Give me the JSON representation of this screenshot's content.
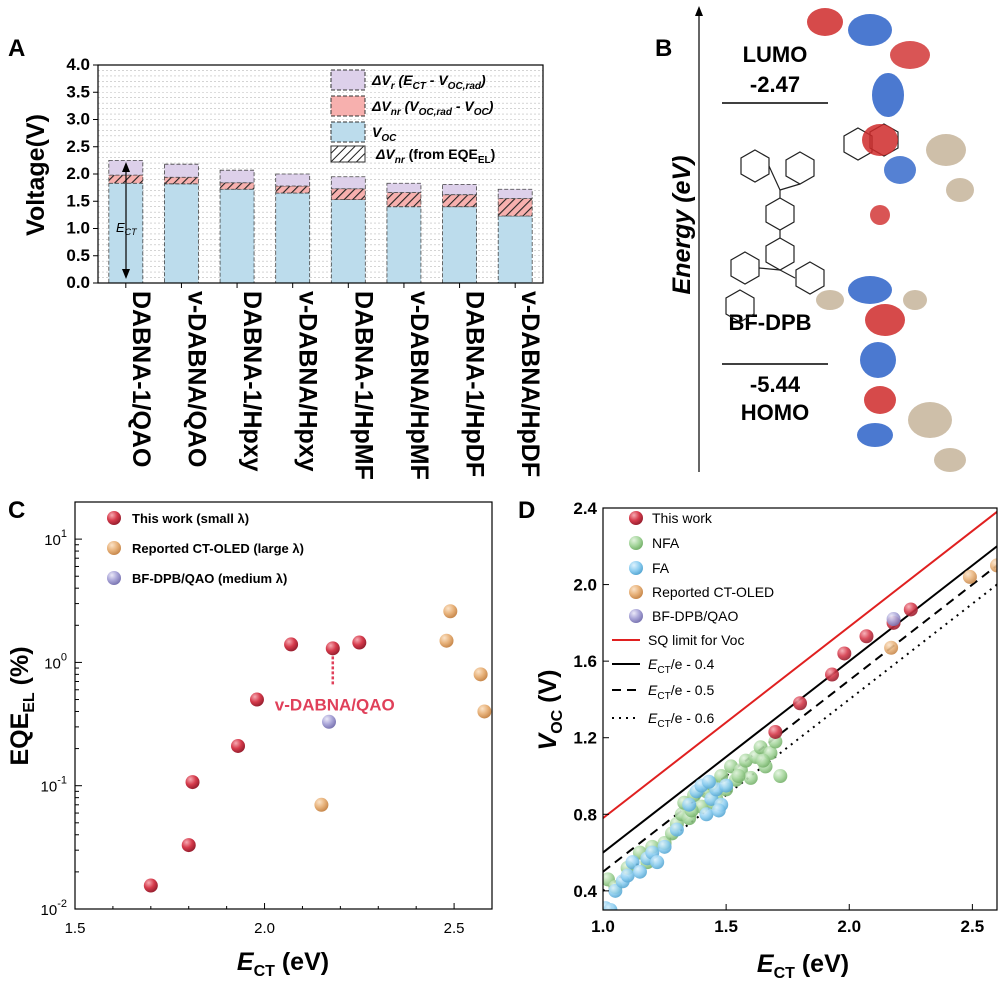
{
  "panel_labels": {
    "a": "A",
    "b": "B",
    "c": "C",
    "d": "D"
  },
  "colors": {
    "voc_fill": "#bcdcec",
    "nr_fill": "#f7b0ae",
    "r_fill": "#ddd0ea",
    "this_work": "#d63b4c",
    "reported": "#e8b37c",
    "bfdpb": "#aaa6d8",
    "nfa": "#a3d49a",
    "fa": "#8ccdf0",
    "sq": "#e02020",
    "annot": "#e0405a"
  },
  "chart_data": [
    {
      "id": "A",
      "type": "bar",
      "ylabel": "Voltage(V)",
      "ylim": [
        0,
        4.0
      ],
      "yticks": [
        "0.0",
        "0.5",
        "1.0",
        "1.5",
        "2.0",
        "2.5",
        "3.0",
        "3.5",
        "4.0"
      ],
      "grid": true,
      "categories": [
        "DABNA-1/QAO",
        "v-DABNA/QAO",
        "DABNA-1/Hpxy",
        "v-DABNA/Hpxy",
        "DABNA-1/HpMF",
        "v-DABNA/HpMF",
        "DABNA-1/HpDF",
        "v-DABNA/HpDF"
      ],
      "series": [
        {
          "name": "V_OC",
          "values": [
            1.83,
            1.82,
            1.72,
            1.65,
            1.53,
            1.4,
            1.4,
            1.23
          ]
        },
        {
          "name": "ΔV_nr (V_OC,rad - V_OC)",
          "values": [
            0.15,
            0.12,
            0.12,
            0.13,
            0.2,
            0.26,
            0.22,
            0.32
          ]
        },
        {
          "name": "ΔV_r (E_CT - V_OC,rad)",
          "values": [
            0.27,
            0.24,
            0.23,
            0.22,
            0.22,
            0.17,
            0.19,
            0.17
          ]
        }
      ],
      "hatch_values": [
        0.15,
        0.12,
        0.12,
        0.13,
        0.2,
        0.26,
        0.22,
        0.32
      ],
      "legend": {
        "r": {
          "main": "ΔV",
          "sub": "r",
          "rest1": " (E",
          "rest1sub": "CT",
          "rest2": " - V",
          "rest2sub": "OC,rad",
          "rest3": ")"
        },
        "nr": {
          "main": "ΔV",
          "sub": "nr",
          "rest1": " (V",
          "rest1sub": "OC,rad",
          "rest2": " - V",
          "rest2sub": "OC",
          "rest3": ")"
        },
        "voc": {
          "main": "V",
          "sub": "OC"
        },
        "hatch": {
          "main": "ΔV",
          "sub": "nr",
          "rest1": " (from EQE",
          "rest1sub": "EL",
          "rest2": ")"
        }
      },
      "ect_label": {
        "main": "E",
        "sub": "CT"
      }
    },
    {
      "id": "C",
      "type": "scatter",
      "ylabel": {
        "main": "EQE",
        "sub": "EL",
        "rest": " (%)"
      },
      "xlabel": {
        "main": "E",
        "sub": "CT",
        "rest": " (eV)"
      },
      "xlim": [
        1.5,
        2.6
      ],
      "xticks": [
        "1.5",
        "2.0",
        "2.5"
      ],
      "ylim_log": [
        0.01,
        20
      ],
      "yticks": [
        {
          "base": "10",
          "exp": "-2"
        },
        {
          "base": "10",
          "exp": "-1"
        },
        {
          "base": "10",
          "exp": "0"
        },
        {
          "base": "10",
          "exp": "1"
        }
      ],
      "series": [
        {
          "name": "This work (small λ)",
          "color_key": "this_work",
          "points": [
            [
              1.7,
              0.0155
            ],
            [
              1.8,
              0.033
            ],
            [
              1.81,
              0.107
            ],
            [
              1.93,
              0.21
            ],
            [
              1.98,
              0.5
            ],
            [
              2.07,
              1.4
            ],
            [
              2.18,
              1.3
            ],
            [
              2.25,
              1.45
            ]
          ]
        },
        {
          "name": "Reported CT-OLED (large λ)",
          "color_key": "reported",
          "points": [
            [
              2.15,
              0.07
            ],
            [
              2.48,
              1.5
            ],
            [
              2.49,
              2.6
            ],
            [
              2.57,
              0.8
            ],
            [
              2.58,
              0.4
            ]
          ]
        },
        {
          "name": "BF-DPB/QAO (medium λ)",
          "color_key": "bfdpb",
          "points": [
            [
              2.17,
              0.33
            ]
          ]
        }
      ],
      "annotation": {
        "text": "v-DABNA/QAO",
        "italic_prefix": "v",
        "x": 2.18,
        "y": 1.3
      }
    },
    {
      "id": "D",
      "type": "scatter",
      "ylabel": {
        "main": "V",
        "sub": "OC",
        "rest": " (V)"
      },
      "xlabel": {
        "main": "E",
        "sub": "CT",
        "rest": " (eV)"
      },
      "xlim": [
        1.0,
        2.6
      ],
      "ylim": [
        0.3,
        2.4
      ],
      "xticks": [
        "1.0",
        "1.5",
        "2.0",
        "2.5"
      ],
      "yticks": [
        "0.4",
        "0.8",
        "1.2",
        "1.6",
        "2.0",
        "2.4"
      ],
      "series": [
        {
          "name": "This work",
          "color_key": "this_work",
          "points": [
            [
              1.7,
              1.23
            ],
            [
              1.8,
              1.38
            ],
            [
              1.93,
              1.53
            ],
            [
              1.98,
              1.64
            ],
            [
              2.07,
              1.73
            ],
            [
              2.18,
              1.8
            ],
            [
              2.25,
              1.87
            ]
          ]
        },
        {
          "name": "NFA",
          "color_key": "nfa",
          "points": [
            [
              1.02,
              0.46
            ],
            [
              1.05,
              0.42
            ],
            [
              1.1,
              0.52
            ],
            [
              1.15,
              0.6
            ],
            [
              1.18,
              0.55
            ],
            [
              1.2,
              0.63
            ],
            [
              1.25,
              0.65
            ],
            [
              1.28,
              0.7
            ],
            [
              1.3,
              0.75
            ],
            [
              1.32,
              0.8
            ],
            [
              1.33,
              0.86
            ],
            [
              1.35,
              0.78
            ],
            [
              1.37,
              0.9
            ],
            [
              1.4,
              0.84
            ],
            [
              1.42,
              0.92
            ],
            [
              1.44,
              0.96
            ],
            [
              1.46,
              0.88
            ],
            [
              1.48,
              1.0
            ],
            [
              1.5,
              0.93
            ],
            [
              1.52,
              1.05
            ],
            [
              1.54,
              0.98
            ],
            [
              1.56,
              1.03
            ],
            [
              1.58,
              1.08
            ],
            [
              1.6,
              0.99
            ],
            [
              1.62,
              1.1
            ],
            [
              1.64,
              1.15
            ],
            [
              1.66,
              1.05
            ],
            [
              1.68,
              1.12
            ],
            [
              1.7,
              1.18
            ],
            [
              1.72,
              1.0
            ],
            [
              1.36,
              0.82
            ],
            [
              1.45,
              0.86
            ],
            [
              1.55,
              1.0
            ],
            [
              1.65,
              1.08
            ]
          ]
        },
        {
          "name": "FA",
          "color_key": "fa",
          "points": [
            [
              1.01,
              0.31
            ],
            [
              1.03,
              0.3
            ],
            [
              1.05,
              0.4
            ],
            [
              1.08,
              0.45
            ],
            [
              1.1,
              0.48
            ],
            [
              1.12,
              0.55
            ],
            [
              1.15,
              0.5
            ],
            [
              1.18,
              0.57
            ],
            [
              1.2,
              0.6
            ],
            [
              1.22,
              0.55
            ],
            [
              1.25,
              0.63
            ],
            [
              1.3,
              0.72
            ],
            [
              1.35,
              0.85
            ],
            [
              1.38,
              0.92
            ],
            [
              1.4,
              0.95
            ],
            [
              1.42,
              0.8
            ],
            [
              1.44,
              0.88
            ],
            [
              1.46,
              0.93
            ],
            [
              1.48,
              0.85
            ],
            [
              1.5,
              0.95
            ],
            [
              1.43,
              0.97
            ],
            [
              1.47,
              0.82
            ]
          ]
        },
        {
          "name": "Reported CT-OLED",
          "color_key": "reported",
          "points": [
            [
              2.17,
              1.67
            ],
            [
              2.49,
              2.04
            ],
            [
              2.6,
              2.1
            ]
          ]
        },
        {
          "name": "BF-DPB/QAO",
          "color_key": "bfdpb",
          "points": [
            [
              2.18,
              1.82
            ]
          ]
        }
      ],
      "lines": [
        {
          "name": "SQ limit for Voc",
          "style": "sq",
          "offset": 0.22
        },
        {
          "name": "E_CT/e - 0.4",
          "style": "solid",
          "offset": 0.4,
          "label": {
            "main": "E",
            "sub": "CT",
            "rest": "/e - 0.4"
          }
        },
        {
          "name": "E_CT/e - 0.5",
          "style": "dashed",
          "offset": 0.5,
          "label": {
            "main": "E",
            "sub": "CT",
            "rest": "/e - 0.5"
          }
        },
        {
          "name": "E_CT/e - 0.6",
          "style": "dotted",
          "offset": 0.6,
          "label": {
            "main": "E",
            "sub": "CT",
            "rest": "/e - 0.6"
          }
        }
      ]
    }
  ],
  "diagram_b": {
    "ylabel": "Energy (eV)",
    "lumo_label": "LUMO",
    "lumo_value": "-2.47",
    "homo_label": "HOMO",
    "homo_value": "-5.44",
    "molecule_label": "BF-DPB"
  }
}
